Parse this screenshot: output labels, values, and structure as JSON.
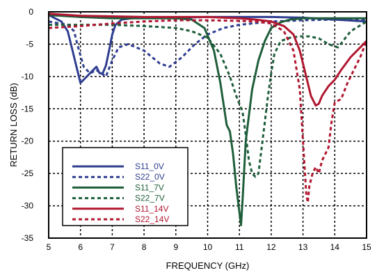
{
  "chart_data": {
    "type": "line",
    "xlabel": "FREQUENCY (GHz)",
    "ylabel": "RETURN LOSS (dB)",
    "xlim": [
      5,
      15
    ],
    "ylim": [
      -35,
      0
    ],
    "xticks": [
      5,
      6,
      7,
      8,
      9,
      10,
      11,
      12,
      13,
      14,
      15
    ],
    "yticks": [
      0,
      -5,
      -10,
      -15,
      -20,
      -25,
      -30,
      -35
    ],
    "grid": true,
    "legend_position": "bottom-left",
    "series": [
      {
        "name": "S11_0V",
        "color": "#2e3d8f",
        "dash": "solid",
        "x": [
          5,
          5.4,
          5.6,
          5.75,
          5.9,
          6.0,
          6.1,
          6.3,
          6.5,
          6.6,
          6.7,
          6.8,
          6.9,
          7.0,
          7.1,
          7.3,
          7.6,
          8,
          9,
          10,
          11,
          12,
          13,
          14,
          15
        ],
        "y": [
          -0.5,
          -1.5,
          -3,
          -6,
          -9,
          -11,
          -10.5,
          -9.5,
          -8.5,
          -9.5,
          -9.5,
          -8.3,
          -6,
          -3.5,
          -2,
          -1.2,
          -1,
          -0.9,
          -0.9,
          -0.8,
          -0.8,
          -0.8,
          -0.9,
          -1.2,
          -1.5
        ]
      },
      {
        "name": "S22_0V",
        "color": "#2e3d8f",
        "dash": "dashed",
        "x": [
          5,
          5.6,
          5.8,
          5.9,
          6.1,
          6.3,
          6.5,
          6.8,
          7.0,
          7.2,
          7.5,
          8.0,
          8.5,
          8.8,
          9.2,
          9.6,
          10,
          10.5,
          11,
          12,
          13,
          14,
          15
        ],
        "y": [
          -1.5,
          -2,
          -3,
          -5,
          -8.5,
          -9.5,
          -9,
          -10,
          -7.5,
          -5.5,
          -5,
          -6,
          -8,
          -8.5,
          -7,
          -5,
          -3.5,
          -2.5,
          -2,
          -1.5,
          -1.3,
          -1.2,
          -1.3
        ]
      },
      {
        "name": "S11_7V",
        "color": "#1e5e3a",
        "dash": "solid",
        "x": [
          5,
          6,
          7,
          8,
          9,
          9.5,
          9.9,
          10.2,
          10.4,
          10.6,
          10.7,
          10.8,
          10.9,
          11.0,
          11.05,
          11.1,
          11.2,
          11.4,
          11.6,
          11.8,
          12.0,
          12.3,
          12.6,
          13,
          14,
          15
        ],
        "y": [
          -0.5,
          -0.8,
          -1,
          -1,
          -1,
          -1.2,
          -2.5,
          -6,
          -11,
          -17.5,
          -18.5,
          -22,
          -27,
          -31,
          -33,
          -29,
          -20,
          -12,
          -7.5,
          -4.5,
          -2.5,
          -1.6,
          -1.2,
          -1,
          -1,
          -1
        ]
      },
      {
        "name": "S22_7V",
        "color": "#1e5e3a",
        "dash": "dashed",
        "x": [
          5,
          6,
          7,
          8,
          9,
          9.5,
          10,
          10.4,
          10.7,
          10.9,
          11.1,
          11.2,
          11.3,
          11.4,
          11.5,
          11.6,
          11.7,
          11.8,
          11.9,
          12.0,
          12.1,
          12.3,
          12.6,
          12.9,
          13.2,
          13.5,
          13.8,
          14.1,
          14.5,
          15
        ],
        "y": [
          -2,
          -2,
          -2,
          -2.2,
          -2.5,
          -3,
          -4,
          -6.5,
          -10,
          -13,
          -15.5,
          -19,
          -23,
          -25,
          -25.5,
          -25,
          -21,
          -17,
          -13,
          -9.5,
          -6.5,
          -4.5,
          -4,
          -3.8,
          -3.8,
          -4.1,
          -5,
          -5.5,
          -3,
          -1.5
        ]
      },
      {
        "name": "S11_14V",
        "color": "#b0162f",
        "dash": "solid",
        "x": [
          5,
          6,
          7,
          8,
          9,
          10,
          11,
          11.5,
          12,
          12.4,
          12.7,
          12.9,
          13.1,
          13.25,
          13.4,
          13.5,
          13.6,
          13.8,
          14.0,
          14.2,
          14.5,
          14.8,
          15
        ],
        "y": [
          -0.3,
          -0.6,
          -0.7,
          -0.8,
          -0.8,
          -0.8,
          -1,
          -1.2,
          -1.5,
          -2.2,
          -3.5,
          -6,
          -10,
          -13,
          -14.5,
          -14.2,
          -13,
          -11.5,
          -10.5,
          -9,
          -7,
          -5.5,
          -4.5
        ]
      },
      {
        "name": "S22_14V",
        "color": "#b0162f",
        "dash": "dashed",
        "x": [
          5,
          6,
          7,
          8,
          9,
          10,
          11,
          11.5,
          12,
          12.4,
          12.7,
          12.9,
          13.0,
          13.1,
          13.15,
          13.2,
          13.3,
          13.4,
          13.5,
          13.6,
          13.7,
          13.8,
          13.9,
          14.0,
          14.2,
          14.4,
          14.6,
          14.8,
          15
        ],
        "y": [
          -2.5,
          -2.2,
          -1.8,
          -1.5,
          -1.3,
          -1.3,
          -1.4,
          -1.5,
          -1.8,
          -3,
          -6,
          -12,
          -20,
          -28,
          -29.5,
          -27,
          -25,
          -24,
          -25,
          -23,
          -22,
          -21,
          -17,
          -14,
          -13.5,
          -11,
          -9,
          -7,
          -4.5
        ]
      }
    ]
  }
}
